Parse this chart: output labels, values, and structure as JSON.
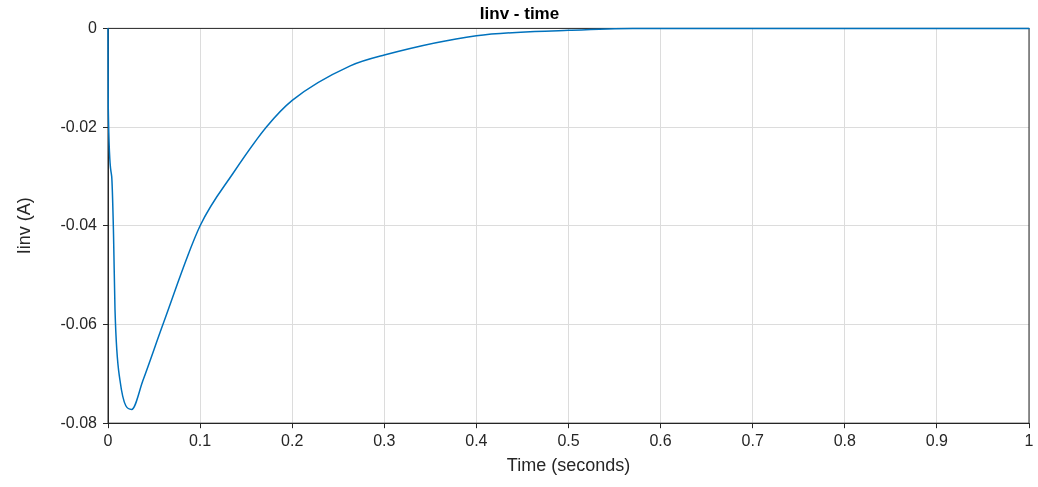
{
  "chart_data": {
    "type": "line",
    "title": "Iinv - time",
    "xlabel": "Time (seconds)",
    "ylabel": "Iinv (A)",
    "x": [
      0,
      0.0003,
      0.004,
      0.006,
      0.0076,
      0.013,
      0.0257,
      0.038,
      0.06,
      0.1,
      0.136,
      0.172,
      0.2,
      0.263,
      0.3,
      0.4,
      0.5,
      0.57,
      1
    ],
    "series": [
      {
        "color": "#0072bd",
        "values": [
          0,
          -0.0163,
          -0.03,
          -0.0417,
          -0.057,
          -0.0713,
          -0.0772,
          -0.0713,
          -0.0598,
          -0.04,
          -0.0293,
          -0.02,
          -0.0146,
          -0.0076,
          -0.0054,
          -0.0015,
          -0.0004,
          0,
          0
        ]
      }
    ],
    "xlim": [
      0,
      1
    ],
    "xticks": [
      0,
      0.1,
      0.2,
      0.3,
      0.4,
      0.5,
      0.6,
      0.7,
      0.8,
      0.9,
      1
    ],
    "ylim": [
      -0.08,
      0
    ],
    "yticks": [
      -0.08,
      -0.06,
      -0.04,
      -0.02,
      0
    ],
    "grid": true,
    "legend": false,
    "marker": "none",
    "line_style": "solid"
  }
}
